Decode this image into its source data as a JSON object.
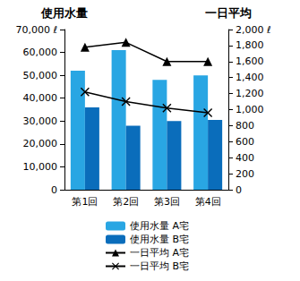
{
  "chart_data": {
    "type": "bar",
    "categories": [
      "第1回",
      "第2回",
      "第3回",
      "第4回"
    ],
    "ylabel": "使用水量",
    "y2label": "一日平均",
    "series": [
      {
        "name": "使用水量 A宅",
        "type": "bar",
        "color": "#29a6e3",
        "values": [
          52000,
          61000,
          48000,
          50000
        ]
      },
      {
        "name": "使用水量 B宅",
        "type": "bar",
        "color": "#0a6dbb",
        "values": [
          36000,
          28000,
          30000,
          30500
        ]
      },
      {
        "name": "一日平均 A宅",
        "type": "line",
        "axis": "y2",
        "color": "#000000",
        "marker": "triangle",
        "values": [
          1780,
          1840,
          1600,
          1600
        ]
      },
      {
        "name": "一日平均 B宅",
        "type": "line",
        "axis": "y2",
        "color": "#000000",
        "marker": "x",
        "values": [
          1220,
          1100,
          1020,
          960
        ]
      }
    ],
    "ylim": [
      0,
      70000
    ],
    "yticks": [
      0,
      {
        "value": 10000,
        "label": "10,000"
      },
      {
        "value": 20000,
        "label": "20,000"
      },
      {
        "value": 30000,
        "label": "30,000"
      },
      {
        "value": 40000,
        "label": "40,000"
      },
      {
        "value": 50000,
        "label": "50,000"
      },
      {
        "value": 60000,
        "label": "60,000"
      },
      {
        "value": 70000,
        "label": "70,000 ℓ"
      }
    ],
    "y2lim": [
      0,
      2000
    ],
    "y2ticks": [
      0,
      200,
      400,
      600,
      800,
      {
        "value": 1000,
        "label": "1,000"
      },
      {
        "value": 1200,
        "label": "1,200"
      },
      {
        "value": 1400,
        "label": "1,400"
      },
      {
        "value": 1600,
        "label": "1,600"
      },
      {
        "value": 1800,
        "label": "1,800"
      },
      {
        "value": 2000,
        "label": "2,000 ℓ"
      }
    ],
    "grid": false,
    "legend": "bottom"
  }
}
